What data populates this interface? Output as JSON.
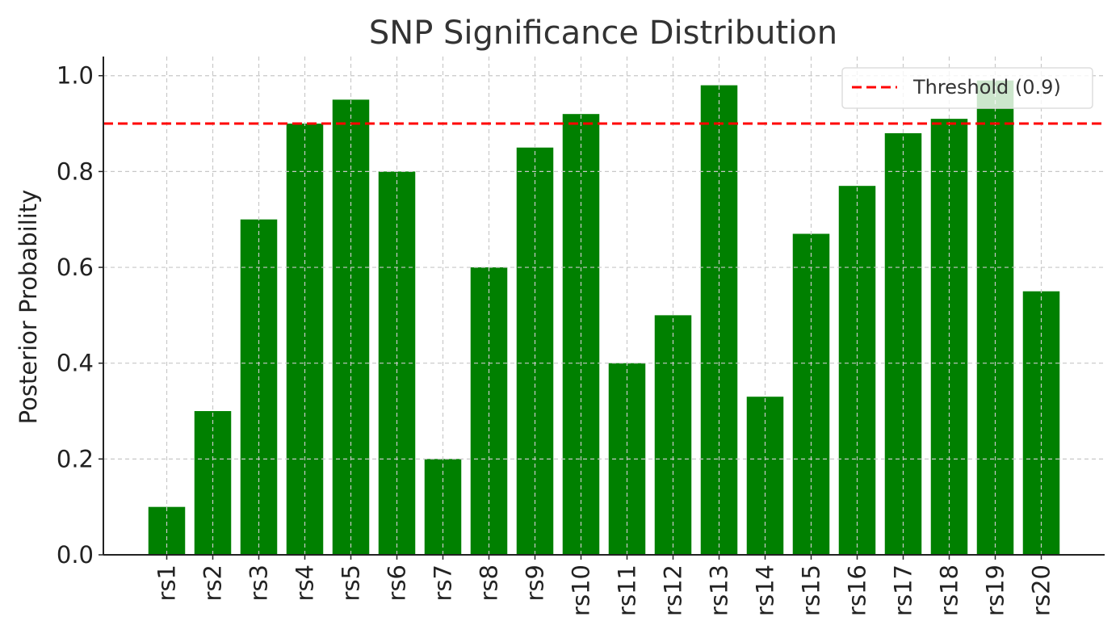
{
  "chart_data": {
    "type": "bar",
    "title": "SNP Significance Distribution",
    "xlabel": "",
    "ylabel": "Posterior Probability",
    "categories": [
      "rs1",
      "rs2",
      "rs3",
      "rs4",
      "rs5",
      "rs6",
      "rs7",
      "rs8",
      "rs9",
      "rs10",
      "rs11",
      "rs12",
      "rs13",
      "rs14",
      "rs15",
      "rs16",
      "rs17",
      "rs18",
      "rs19",
      "rs20"
    ],
    "values": [
      0.1,
      0.3,
      0.7,
      0.9,
      0.95,
      0.8,
      0.2,
      0.6,
      0.85,
      0.92,
      0.4,
      0.5,
      0.98,
      0.33,
      0.67,
      0.77,
      0.88,
      0.91,
      0.99,
      0.55
    ],
    "ylim": [
      0,
      1.04
    ],
    "yticks": [
      "0.0",
      "0.2",
      "0.4",
      "0.6",
      "0.8",
      "1.0"
    ],
    "bar_color": "#008000",
    "threshold": {
      "value": 0.9,
      "label": "Threshold (0.9)",
      "color": "#ff0000",
      "style": "dashed"
    },
    "grid": true,
    "legend_position": "top-right"
  }
}
